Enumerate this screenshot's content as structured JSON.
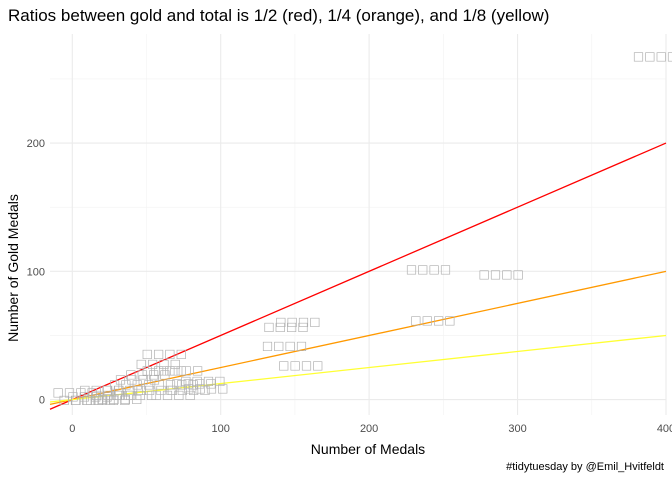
{
  "chart_data": {
    "type": "scatter",
    "title": "Ratios between gold and total is 1/2 (red), 1/4 (orange), and 1/8 (yellow)",
    "xlabel": "Number of Medals",
    "ylabel": "Number of Gold Medals",
    "caption": "#tidytuesday by @Emil_Hvitfeldt",
    "xlim": [
      -15,
      400
    ],
    "ylim": [
      -12,
      285
    ],
    "x_ticks": [
      0,
      100,
      200,
      300,
      400
    ],
    "y_ticks": [
      0,
      100,
      200
    ],
    "grid": true,
    "reference_lines": [
      {
        "slope": 0.5,
        "color": "#ff0000"
      },
      {
        "slope": 0.25,
        "color": "#ff9900"
      },
      {
        "slope": 0.125,
        "color": "#ffff33"
      }
    ],
    "point_label_color": "#b0b0b0",
    "points": [
      {
        "x": 393,
        "y": 268,
        "label": "□□□□"
      },
      {
        "x": 240,
        "y": 102,
        "label": "□□□□"
      },
      {
        "x": 289,
        "y": 98,
        "label": "□□□□"
      },
      {
        "x": 243,
        "y": 62,
        "label": "□□□□"
      },
      {
        "x": 152,
        "y": 61,
        "label": "□□□□"
      },
      {
        "x": 144,
        "y": 57,
        "label": "□□□□"
      },
      {
        "x": 143,
        "y": 42,
        "label": "□□□□"
      },
      {
        "x": 154,
        "y": 27,
        "label": "□□□□"
      },
      {
        "x": 62,
        "y": 36,
        "label": "□□□□"
      },
      {
        "x": 58,
        "y": 28,
        "label": "□□□□"
      },
      {
        "x": 62,
        "y": 23,
        "label": "□□□□"
      },
      {
        "x": 73,
        "y": 23,
        "label": "□□□□"
      },
      {
        "x": 51,
        "y": 20,
        "label": "□□□□"
      },
      {
        "x": 44,
        "y": 16,
        "label": "□□□□"
      },
      {
        "x": 88,
        "y": 15,
        "label": "□□□□"
      },
      {
        "x": 82,
        "y": 13,
        "label": "□□□□"
      },
      {
        "x": 70,
        "y": 12,
        "label": "□□□□"
      },
      {
        "x": 40,
        "y": 12,
        "label": "□□□□"
      },
      {
        "x": 90,
        "y": 9,
        "label": "□□□□"
      },
      {
        "x": 78,
        "y": 8,
        "label": "□□□□"
      },
      {
        "x": 56,
        "y": 8,
        "label": "□□□□"
      },
      {
        "x": 35,
        "y": 8,
        "label": "□□□□"
      },
      {
        "x": 20,
        "y": 8,
        "label": "□□□□"
      },
      {
        "x": 2,
        "y": 6,
        "label": "□□□□"
      },
      {
        "x": 68,
        "y": 4,
        "label": "□□□□"
      },
      {
        "x": 42,
        "y": 4,
        "label": "□□□□"
      },
      {
        "x": 28,
        "y": 4,
        "label": "□□□□"
      },
      {
        "x": 12,
        "y": 3,
        "label": "□□□□"
      },
      {
        "x": 32,
        "y": 1,
        "label": "□□□□"
      },
      {
        "x": 14,
        "y": 0,
        "label": "□□□□"
      },
      {
        "x": 6,
        "y": 0,
        "label": "□□□□"
      },
      {
        "x": 24,
        "y": 0,
        "label": "□□□□"
      }
    ]
  }
}
